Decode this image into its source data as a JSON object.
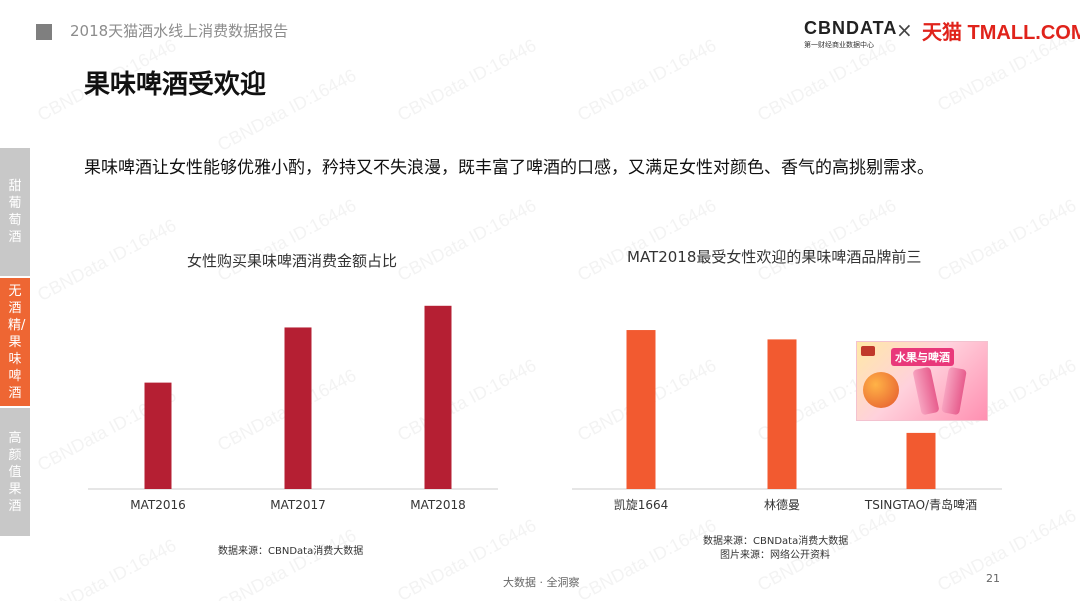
{
  "header": {
    "report_title": "2018天猫酒水线上消费数据报告",
    "logo_cbndata": "CBNDATA",
    "logo_cbndata_sub": "第一财经商业数据中心",
    "logo_separator": "×",
    "logo_tmall": "天猫 TMALL.COM"
  },
  "watermark_text": "CBNData ID:16446",
  "page_title": "果味啤酒受欢迎",
  "intro": "果味啤酒让女性能够优雅小酌，矜持又不失浪漫，既丰富了啤酒的口感，又满足女性对颜色、香气的高挑剔需求。",
  "side_tabs": [
    {
      "label": "甜葡萄酒",
      "active": false
    },
    {
      "label": "无酒精/果味啤酒",
      "active": true
    },
    {
      "label": "高颜值果酒",
      "active": false
    }
  ],
  "colors": {
    "bar_left": "#b51f33",
    "bar_right": "#f25a30",
    "tab_active": "#ee6633",
    "tab_inactive": "#c8c8c8",
    "axis": "#cccccc"
  },
  "chart_data": [
    {
      "type": "bar",
      "title": "女性购买果味啤酒消费金额占比",
      "categories": [
        "MAT2016",
        "MAT2017",
        "MAT2018"
      ],
      "values": [
        54,
        82,
        93
      ],
      "ylim": [
        0,
        100
      ],
      "grid": false,
      "source": "数据来源：CBNData消费大数据"
    },
    {
      "type": "bar",
      "title": "MAT2018最受女性欢迎的果味啤酒品牌前三",
      "categories": [
        "凯旋1664",
        "林德曼",
        "TSINGTAO/青岛啤酒"
      ],
      "values": [
        85,
        80,
        30
      ],
      "ylim": [
        0,
        100
      ],
      "grid": false,
      "source": "数据来源：CBNData消费大数据",
      "image_source": "图片来源：网络公开资料",
      "product_banner": "水果与啤酒"
    }
  ],
  "footer": {
    "slogan": "大数据 · 全洞察",
    "page_number": "21"
  }
}
